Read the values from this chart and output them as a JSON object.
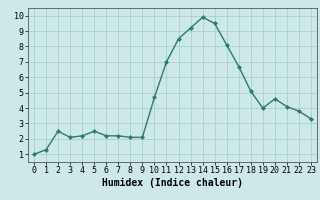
{
  "x": [
    0,
    1,
    2,
    3,
    4,
    5,
    6,
    7,
    8,
    9,
    10,
    11,
    12,
    13,
    14,
    15,
    16,
    17,
    18,
    19,
    20,
    21,
    22,
    23
  ],
  "y": [
    1.0,
    1.3,
    2.5,
    2.1,
    2.2,
    2.5,
    2.2,
    2.2,
    2.1,
    2.1,
    4.7,
    7.0,
    8.5,
    9.2,
    9.9,
    9.5,
    8.1,
    6.7,
    5.1,
    4.0,
    4.6,
    4.1,
    3.8,
    3.3
  ],
  "line_color": "#2d7a6e",
  "marker": "D",
  "marker_size": 2,
  "linewidth": 1.0,
  "background_color": "#cce8e8",
  "grid_color": "#aad0d0",
  "xlabel": "Humidex (Indice chaleur)",
  "xlim": [
    -0.5,
    23.5
  ],
  "ylim": [
    0.5,
    10.5
  ],
  "yticks": [
    1,
    2,
    3,
    4,
    5,
    6,
    7,
    8,
    9,
    10
  ],
  "xlabel_fontsize": 7,
  "tick_fontsize": 6
}
